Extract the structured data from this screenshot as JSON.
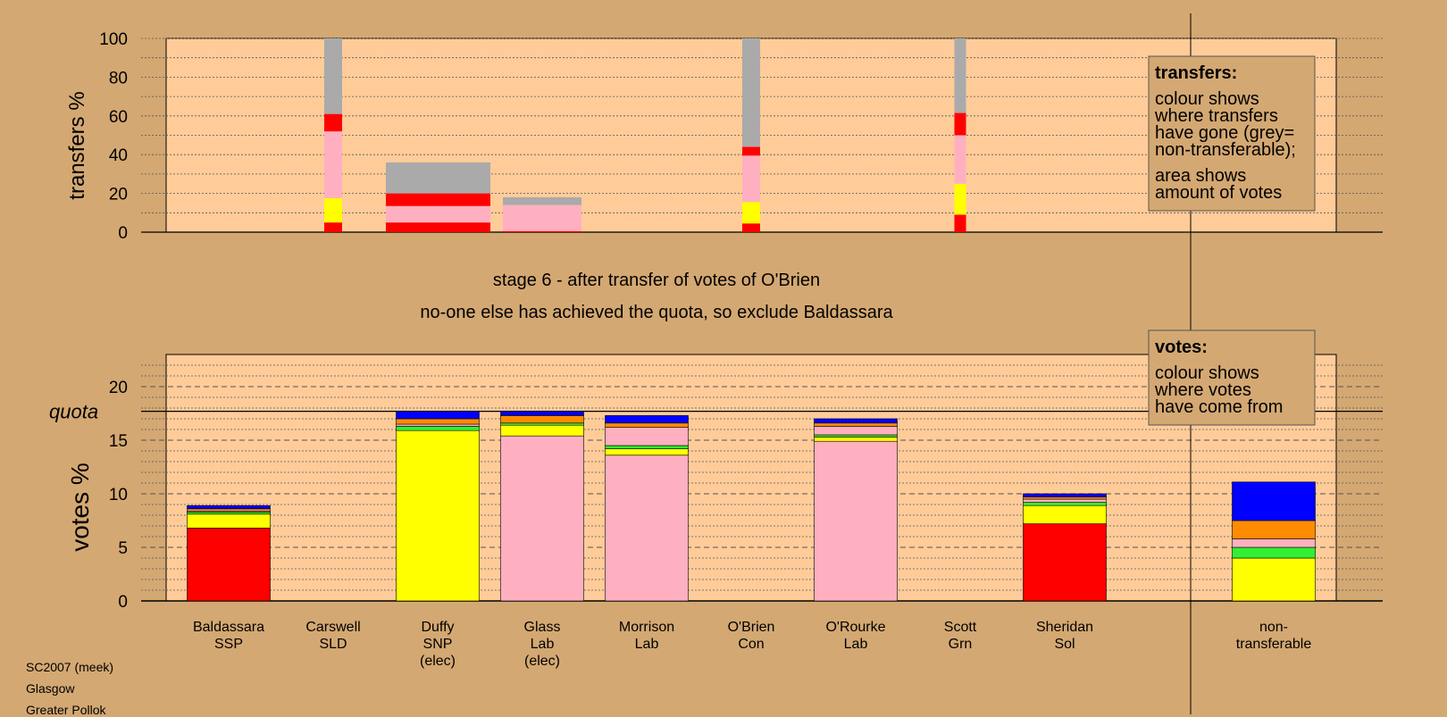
{
  "colors": {
    "background": "#d4a872",
    "plot_background": "#ffcc99",
    "frame_line": "#000000"
  },
  "party_colors": {
    "Con": "#0000ff",
    "Lab": "#ffb0c0",
    "SNP": "#ffff00",
    "Grn": "#33ee33",
    "SLD": "#ff8c00",
    "SSP": "#ff0000",
    "Sol": "#ff0000",
    "Non": "#aaaaaa"
  },
  "stage_title": "stage 6 - after transfer of votes of O'Brien",
  "stage_subtitle": "no-one else has achieved the quota, so exclude Baldassara",
  "footer": [
    "SC2007 (meek)",
    "Glasgow",
    "Greater Pollok"
  ],
  "chart_data": [
    {
      "type": "bar",
      "title": "transfers",
      "ylabel": "transfers %",
      "ylim": [
        0,
        100
      ],
      "yticks": [
        0,
        20,
        40,
        60,
        80,
        100
      ],
      "grid": "dotted",
      "legend": {
        "placement": "top-right",
        "title": "transfers:",
        "lines": [
          "colour shows",
          "where transfers",
          "have gone (grey=",
          "non-transferable);",
          "",
          "area shows",
          "amount of votes"
        ]
      },
      "bars": [
        {
          "candidate": "Carswell",
          "width_class": "thin",
          "segments": [
            {
              "color": "#ff0000",
              "value": 5
            },
            {
              "color": "#ffff00",
              "value": 12.5
            },
            {
              "color": "#ffb0c0",
              "value": 34.5
            },
            {
              "color": "#ff0000",
              "value": 9
            },
            {
              "color": "#aaaaaa",
              "value": 39
            }
          ]
        },
        {
          "candidate": "Duffy",
          "width_class": "wide",
          "segments": [
            {
              "color": "#ff0000",
              "value": 5
            },
            {
              "color": "#ffb0c0",
              "value": 8.5
            },
            {
              "color": "#ff0000",
              "value": 6.5
            },
            {
              "color": "#aaaaaa",
              "value": 16
            }
          ]
        },
        {
          "candidate": "Glass",
          "width_class": "wide",
          "segments": [
            {
              "color": "#ff0000",
              "value": 0.5
            },
            {
              "color": "#ffb0c0",
              "value": 13.5
            },
            {
              "color": "#aaaaaa",
              "value": 4
            }
          ]
        },
        {
          "candidate": "O'Brien",
          "width_class": "thin",
          "segments": [
            {
              "color": "#ff0000",
              "value": 4.5
            },
            {
              "color": "#ffff00",
              "value": 11
            },
            {
              "color": "#ffb0c0",
              "value": 24
            },
            {
              "color": "#ff0000",
              "value": 4.5
            },
            {
              "color": "#aaaaaa",
              "value": 56
            }
          ]
        },
        {
          "candidate": "Scott",
          "width_class": "narrow",
          "segments": [
            {
              "color": "#ff0000",
              "value": 9
            },
            {
              "color": "#ffff00",
              "value": 16
            },
            {
              "color": "#ffb0c0",
              "value": 25
            },
            {
              "color": "#ff0000",
              "value": 11.5
            },
            {
              "color": "#aaaaaa",
              "value": 38.5
            }
          ]
        }
      ]
    },
    {
      "type": "bar",
      "title": "votes",
      "ylabel": "votes %",
      "ylim": [
        0,
        23
      ],
      "yticks": [
        0,
        5,
        10,
        15,
        20
      ],
      "grid": "dashed",
      "quota": 17.7,
      "quota_label": "quota",
      "legend": {
        "placement": "top-right",
        "title": "votes:",
        "lines": [
          "colour shows",
          "where votes",
          "have come from"
        ]
      },
      "categories": [
        {
          "name": "Baldassara",
          "party": "SSP",
          "note": ""
        },
        {
          "name": "Carswell",
          "party": "SLD",
          "note": ""
        },
        {
          "name": "Duffy",
          "party": "SNP",
          "note": "(elec)"
        },
        {
          "name": "Glass",
          "party": "Lab",
          "note": "(elec)"
        },
        {
          "name": "Morrison",
          "party": "Lab",
          "note": ""
        },
        {
          "name": "O'Brien",
          "party": "Con",
          "note": ""
        },
        {
          "name": "O'Rourke",
          "party": "Lab",
          "note": ""
        },
        {
          "name": "Scott",
          "party": "Grn",
          "note": ""
        },
        {
          "name": "Sheridan",
          "party": "Sol",
          "note": ""
        },
        {
          "name": "non-",
          "party": "transferable",
          "note": ""
        }
      ],
      "stacks": [
        [
          {
            "color": "#ff0000",
            "value": 6.8
          },
          {
            "color": "#ffff00",
            "value": 1.3
          },
          {
            "color": "#33ee33",
            "value": 0.2
          },
          {
            "color": "#ffb0c0",
            "value": 0.1
          },
          {
            "color": "#ff8c00",
            "value": 0.2
          },
          {
            "color": "#0000ff",
            "value": 0.3
          }
        ],
        [],
        [
          {
            "color": "#ffff00",
            "value": 15.9
          },
          {
            "color": "#33ee33",
            "value": 0.4
          },
          {
            "color": "#ffb0c0",
            "value": 0.2
          },
          {
            "color": "#ff8c00",
            "value": 0.5
          },
          {
            "color": "#0000ff",
            "value": 0.7
          }
        ],
        [
          {
            "color": "#ffb0c0",
            "value": 15.4
          },
          {
            "color": "#ffff00",
            "value": 1
          },
          {
            "color": "#33ee33",
            "value": 0.2
          },
          {
            "color": "#ff8c00",
            "value": 0.7
          },
          {
            "color": "#0000ff",
            "value": 0.4
          }
        ],
        [
          {
            "color": "#ffb0c0",
            "value": 13.6
          },
          {
            "color": "#ffff00",
            "value": 0.6
          },
          {
            "color": "#33ee33",
            "value": 0.3
          },
          {
            "color": "#ffb0c0",
            "value": 1.7
          },
          {
            "color": "#ff8c00",
            "value": 0.4
          },
          {
            "color": "#0000ff",
            "value": 0.7
          }
        ],
        [],
        [
          {
            "color": "#ffb0c0",
            "value": 14.9
          },
          {
            "color": "#ffff00",
            "value": 0.4
          },
          {
            "color": "#33ee33",
            "value": 0.2
          },
          {
            "color": "#ffb0c0",
            "value": 0.8
          },
          {
            "color": "#ff8c00",
            "value": 0.3
          },
          {
            "color": "#0000ff",
            "value": 0.4
          }
        ],
        [],
        [
          {
            "color": "#ff0000",
            "value": 7.2
          },
          {
            "color": "#ffff00",
            "value": 1.7
          },
          {
            "color": "#33ee33",
            "value": 0.3
          },
          {
            "color": "#ffb0c0",
            "value": 0.3
          },
          {
            "color": "#ff8c00",
            "value": 0.2
          },
          {
            "color": "#0000ff",
            "value": 0.3
          }
        ],
        [
          {
            "color": "#ffff00",
            "value": 4
          },
          {
            "color": "#33ee33",
            "value": 1
          },
          {
            "color": "#ffb0c0",
            "value": 0.8
          },
          {
            "color": "#ff8c00",
            "value": 1.7
          },
          {
            "color": "#0000ff",
            "value": 3.6
          }
        ]
      ]
    }
  ]
}
